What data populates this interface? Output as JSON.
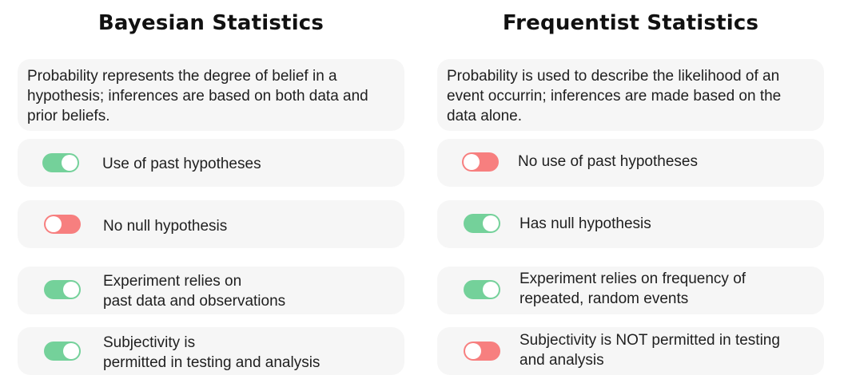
{
  "bayesian": {
    "title": "Bayesian Statistics",
    "description": "Probability represents the degree of belief in a hypothesis; inferences are based on both data and prior beliefs.",
    "rows": [
      {
        "lines": [
          "Use of past hypotheses"
        ],
        "toggle": "on"
      },
      {
        "lines": [
          "No null hypothesis"
        ],
        "toggle": "off"
      },
      {
        "lines": [
          "Experiment relies on",
          "past data and observations"
        ],
        "toggle": "on"
      },
      {
        "lines": [
          "Subjectivity is",
          "permitted in testing and analysis"
        ],
        "toggle": "on"
      }
    ]
  },
  "frequentist": {
    "title": "Frequentist Statistics",
    "description": "Probability is used to describe the likelihood of an event occurrin; inferences are made based on the data alone.",
    "rows": [
      {
        "lines": [
          "No use of past hypotheses"
        ],
        "toggle": "off"
      },
      {
        "lines": [
          "Has null hypothesis"
        ],
        "toggle": "on"
      },
      {
        "lines": [
          "Experiment relies on frequency of",
          "repeated, random events"
        ],
        "toggle": "on"
      },
      {
        "lines": [
          "Subjectivity is NOT permitted in testing",
          "and analysis"
        ],
        "toggle": "off"
      }
    ]
  },
  "colors": {
    "toggle_on": "#74d19a",
    "toggle_off": "#f77f7f",
    "card_background": "#f6f6f6"
  }
}
